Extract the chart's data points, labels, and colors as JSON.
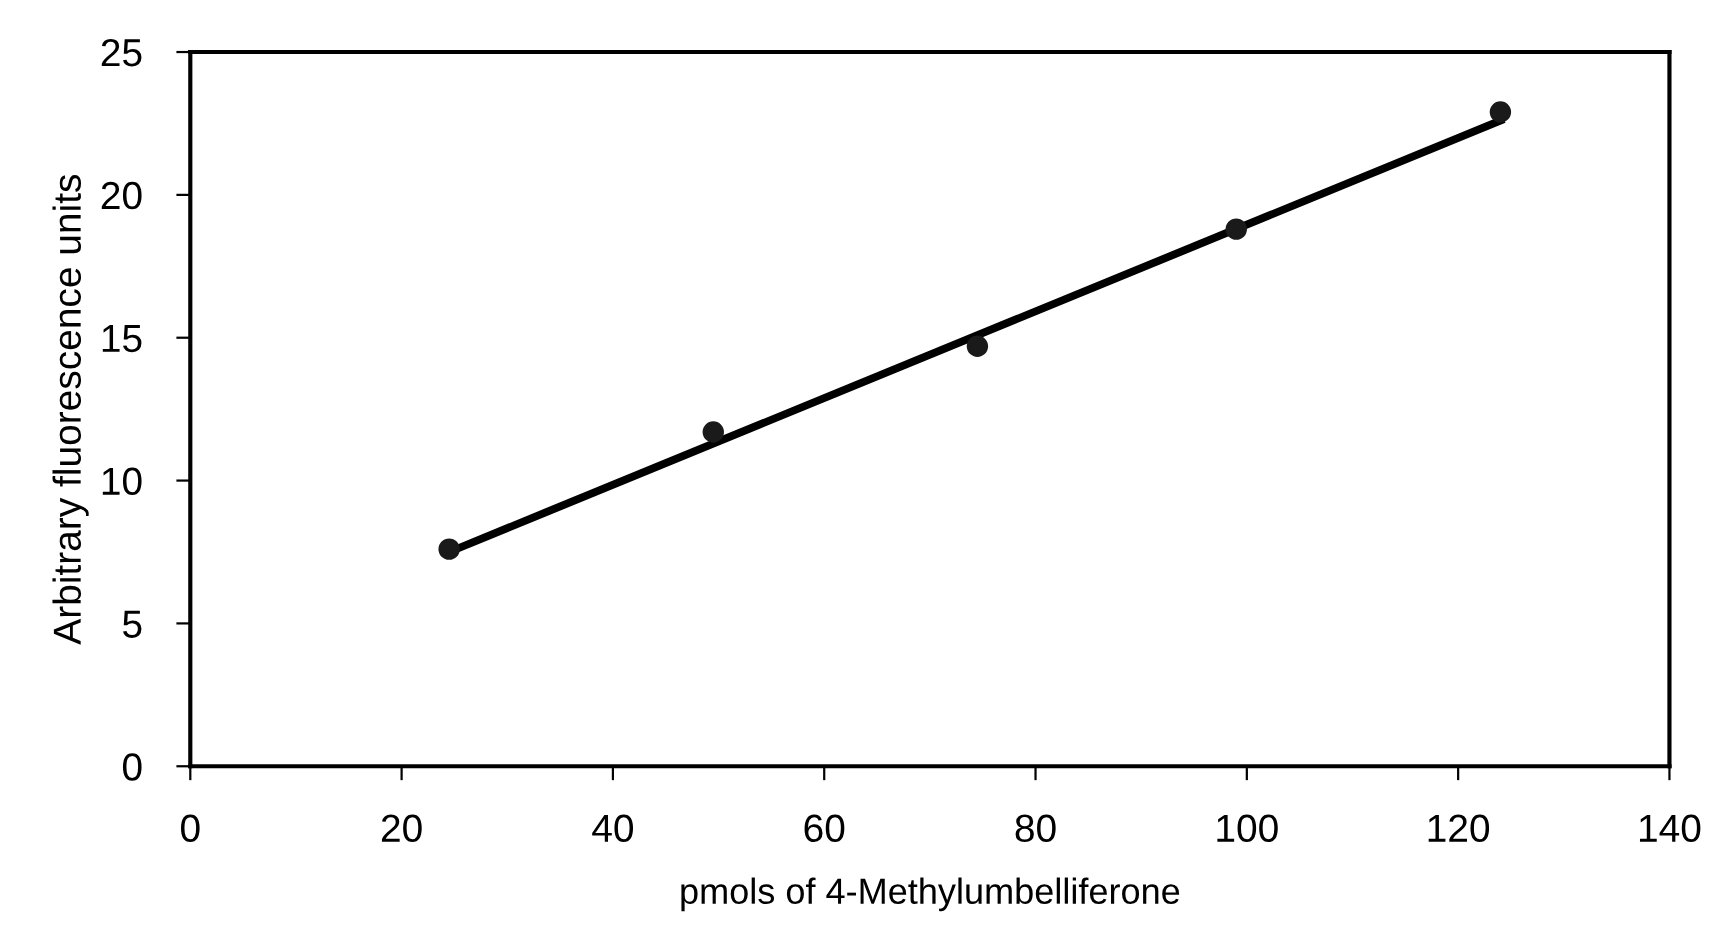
{
  "chart_data": {
    "type": "scatter",
    "xlabel": "pmols of 4-Methylumbelliferone",
    "ylabel": "Arbitrary fluorescence units",
    "xlim": [
      0,
      140
    ],
    "xticks": [
      0,
      20,
      40,
      60,
      80,
      100,
      120,
      140
    ],
    "ylim": [
      0,
      25
    ],
    "yticks": [
      0,
      5,
      10,
      15,
      20,
      25
    ],
    "grid": false,
    "legend": false,
    "series": [
      {
        "color": "#1a1a1a",
        "marker": "circle",
        "x": [
          24.5,
          49.5,
          74.5,
          99,
          124
        ],
        "values": [
          7.6,
          11.7,
          14.7,
          18.8,
          22.9
        ]
      },
      {
        "type": "line",
        "color": "#000000",
        "marker": "none",
        "line_style": "solid",
        "x": [
          24.5,
          124
        ],
        "values": [
          7.5,
          22.6
        ]
      }
    ]
  }
}
